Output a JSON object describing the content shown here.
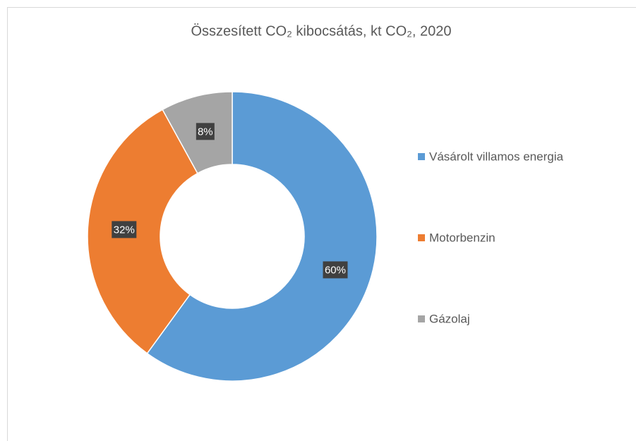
{
  "chart_data": {
    "type": "donut",
    "title": "Összesített CO₂ kibocsátás, kt CO₂, 2020",
    "categories": [
      "Vásárolt villamos energia",
      "Motorbenzin",
      "Gázolaj"
    ],
    "values": [
      60,
      32,
      8
    ],
    "value_labels": [
      "60%",
      "32%",
      "8%"
    ],
    "colors": [
      "#5b9bd5",
      "#ed7d31",
      "#a5a5a5"
    ],
    "legend": "right"
  }
}
